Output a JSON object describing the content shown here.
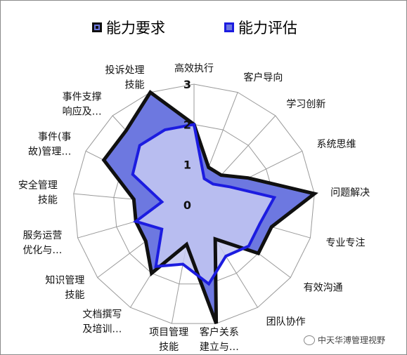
{
  "chart_data": {
    "type": "radar",
    "categories": [
      "高效执行",
      "客户导向",
      "学习创新",
      "系统思维",
      "问题解决",
      "专业专注",
      "有效沟通",
      "团队协作",
      "客户关系建立与…",
      "项目管理技能",
      "文档撰写及培训…",
      "知识管理技能",
      "服务运营优化与…",
      "安全管理技能",
      "事件(事故)管理…",
      "事件支撑响应及…",
      "投诉处理技能"
    ],
    "category_lines": [
      [
        "高效执行"
      ],
      [
        "客户导向"
      ],
      [
        "学习创新"
      ],
      [
        "系统思维"
      ],
      [
        "问题解决"
      ],
      [
        "专业专注"
      ],
      [
        "有效沟通"
      ],
      [
        "团队协作"
      ],
      [
        "客户关系",
        "建立与…"
      ],
      [
        "项目管理",
        "技能"
      ],
      [
        "文档撰写",
        "及培训…"
      ],
      [
        "知识管理",
        "技能"
      ],
      [
        "服务运营",
        "优化与…"
      ],
      [
        "安全管理",
        "技能"
      ],
      [
        "事件(事",
        "故)管理…"
      ],
      [
        "事件支撑",
        "响应及…"
      ],
      [
        "投诉处理",
        "技能"
      ]
    ],
    "rlim": [
      0,
      3
    ],
    "r_ticks": [
      "0",
      "1",
      "2",
      "3"
    ],
    "series": [
      {
        "name": "能力要求",
        "values": [
          2,
          1,
          1,
          1.5,
          3,
          2,
          2,
          1,
          3,
          1,
          2,
          1.5,
          1.5,
          1.5,
          2.5,
          2.5,
          3
        ],
        "color": "#101010",
        "fill": "#6d78e0"
      },
      {
        "name": "能力评估",
        "values": [
          2,
          0.7,
          0.7,
          1,
          2,
          1.7,
          1.7,
          1.5,
          2,
          1.5,
          1.8,
          1,
          1.5,
          0.8,
          1.7,
          2,
          2
        ],
        "color": "#1c1ce0",
        "fill": "#c5c9f2"
      }
    ]
  },
  "legend": [
    {
      "label": "能力要求",
      "color": "#101010"
    },
    {
      "label": "能力评估",
      "color": "#1c1ce0"
    }
  ],
  "watermark": "中天华溥管理视野"
}
